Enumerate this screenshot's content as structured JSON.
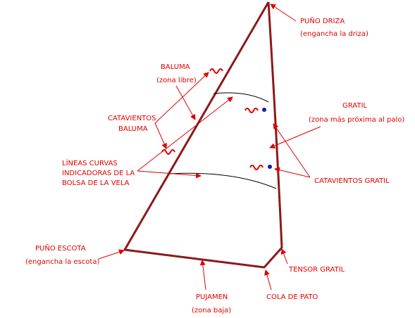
{
  "title_labels": {
    "puno_driza": {
      "name": "PUÑO DRIZA",
      "note": "(engancha la driza)"
    },
    "baluma": {
      "name": "BALUMA",
      "note": "(zona libre)"
    },
    "catavientos_baluma": {
      "lines": [
        "CATAVIENTOS",
        "BALUMA"
      ]
    },
    "lineas_curvas": {
      "lines": [
        "LÍNEAS CURVAS",
        "INDICADORAS DE LA",
        "BOLSA DE LA VELA"
      ]
    },
    "gratil": {
      "name": "GRATIL",
      "note": "(zona más próxima al palo)"
    },
    "catavientos_gratil": {
      "name": "CATAVIENTOS GRATIL"
    },
    "puno_escota": {
      "name": "PUÑO ESCOTA",
      "note": "(engancha la escota)"
    },
    "tensor_gratil": {
      "name": "TENSOR GRATIL"
    },
    "pujamen": {
      "name": "PUJAMEN",
      "note": "(zona baja)"
    },
    "cola_de_pato": {
      "name": "COLA DE PATO"
    }
  }
}
